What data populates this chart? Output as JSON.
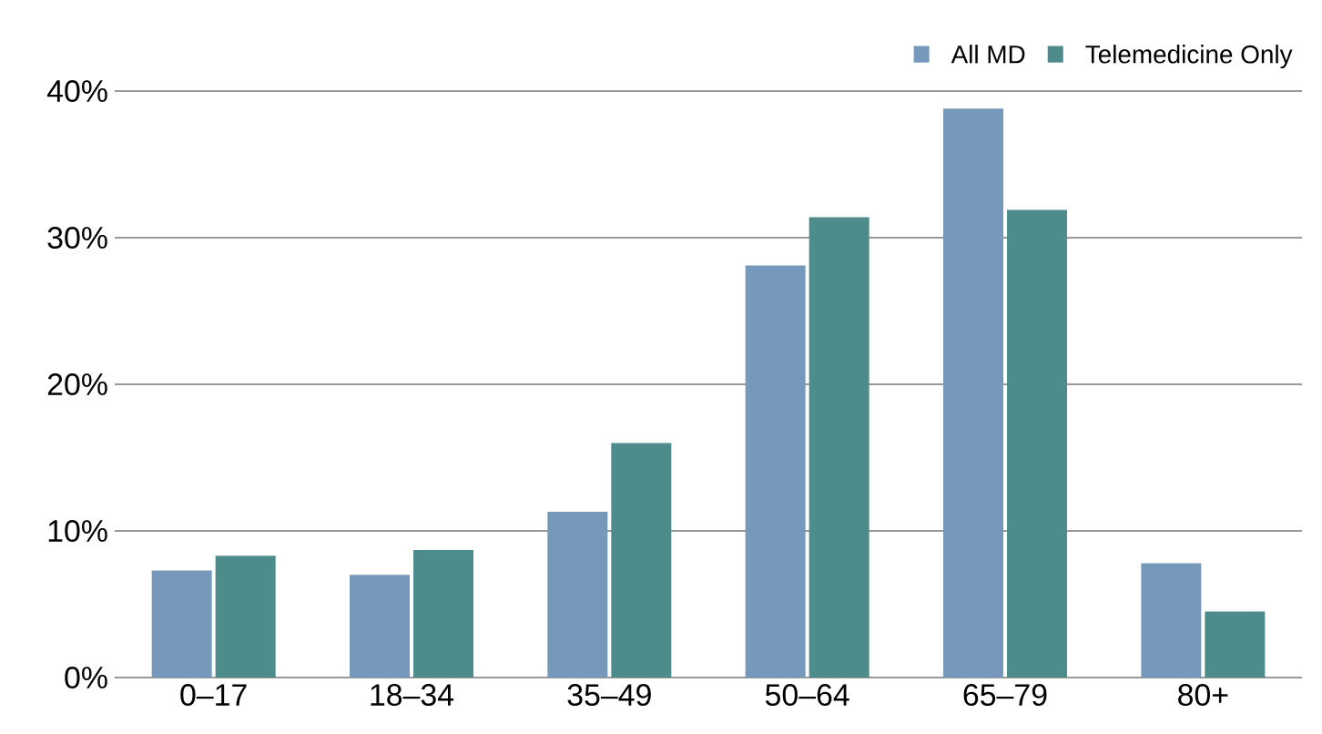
{
  "chart_data": {
    "type": "bar",
    "categories": [
      "0–17",
      "18–34",
      "35–49",
      "50–64",
      "65–79",
      "80+"
    ],
    "series": [
      {
        "name": "All MD",
        "color": "#7698bb",
        "values": [
          7.3,
          7.0,
          11.3,
          28.1,
          38.8,
          7.8
        ]
      },
      {
        "name": "Telemedicine Only",
        "color": "#4e8c8b",
        "values": [
          8.3,
          8.7,
          16.0,
          31.4,
          31.9,
          4.5
        ]
      }
    ],
    "ylim": [
      0,
      40
    ],
    "yticks": [
      {
        "value": 0,
        "label": "0%"
      },
      {
        "value": 10,
        "label": "10%"
      },
      {
        "value": 20,
        "label": "20%"
      },
      {
        "value": 30,
        "label": "30%"
      },
      {
        "value": 40,
        "label": "40%"
      }
    ],
    "grid": "y",
    "legend": "top right"
  }
}
